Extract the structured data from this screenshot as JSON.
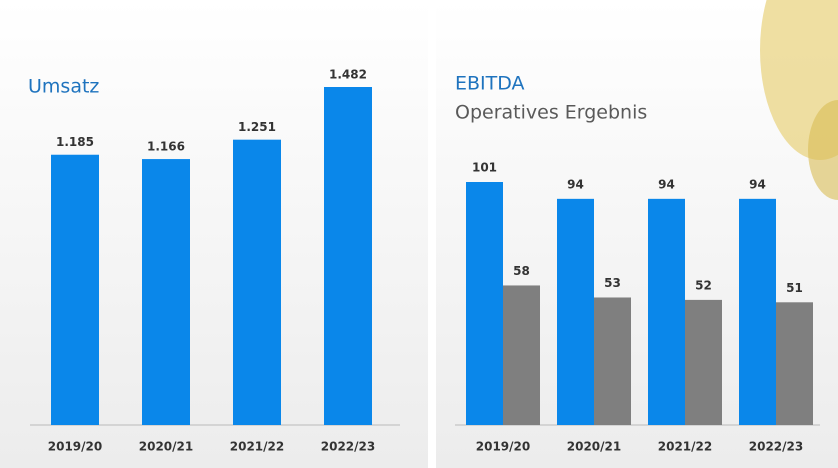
{
  "chart_data": [
    {
      "type": "bar",
      "title": "Umsatz",
      "categories": [
        "2019/20",
        "2020/21",
        "2021/22",
        "2022/23"
      ],
      "values": [
        1185,
        1166,
        1251,
        1482
      ],
      "value_labels": [
        "1.185",
        "1.166",
        "1.251",
        "1.482"
      ],
      "color": "#0a87ea"
    },
    {
      "type": "grouped_bar",
      "categories": [
        "2019/20",
        "2020/21",
        "2021/22",
        "2022/23"
      ],
      "series": [
        {
          "name": "EBITDA",
          "color": "#0a87ea",
          "values": [
            101,
            94,
            94,
            94
          ]
        },
        {
          "name": "Operatives Ergebnis",
          "color": "#7f7f7f",
          "values": [
            58,
            53,
            52,
            51
          ]
        }
      ]
    }
  ]
}
